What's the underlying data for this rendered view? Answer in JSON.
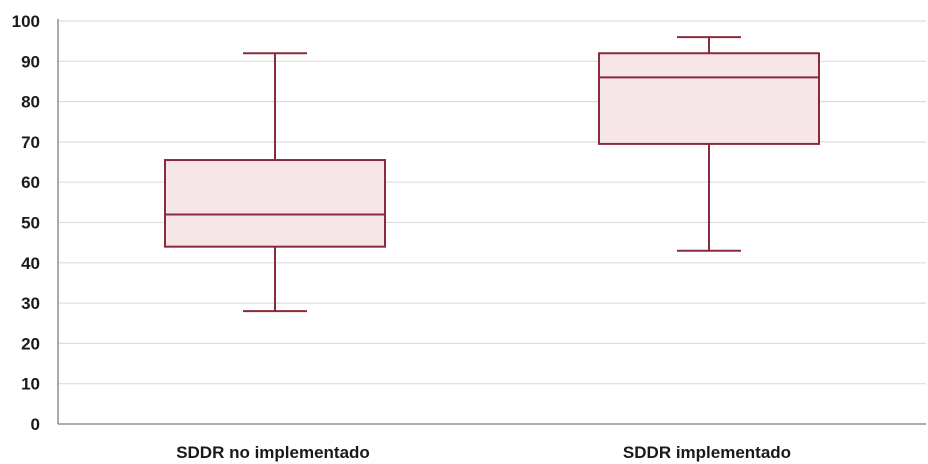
{
  "chart_data": {
    "type": "boxplot",
    "categories": [
      "SDDR no implementado",
      "SDDR implementado"
    ],
    "series": [
      {
        "category": "SDDR no implementado",
        "min": 28,
        "q1": 44,
        "median": 52,
        "q3": 65.5,
        "max": 92
      },
      {
        "category": "SDDR implementado",
        "min": 43,
        "q1": 69.5,
        "median": 86,
        "q3": 92,
        "max": 96
      }
    ],
    "yticks": [
      0,
      10,
      20,
      30,
      40,
      50,
      60,
      70,
      80,
      90,
      100
    ],
    "ylim": [
      0,
      100
    ],
    "grid": true,
    "title": "",
    "xlabel": "",
    "ylabel": "",
    "colors": {
      "stroke": "#8b2a3c",
      "fill": "#f7e6e8",
      "grid": "#dddddd",
      "axis": "#7f7f7f"
    }
  }
}
